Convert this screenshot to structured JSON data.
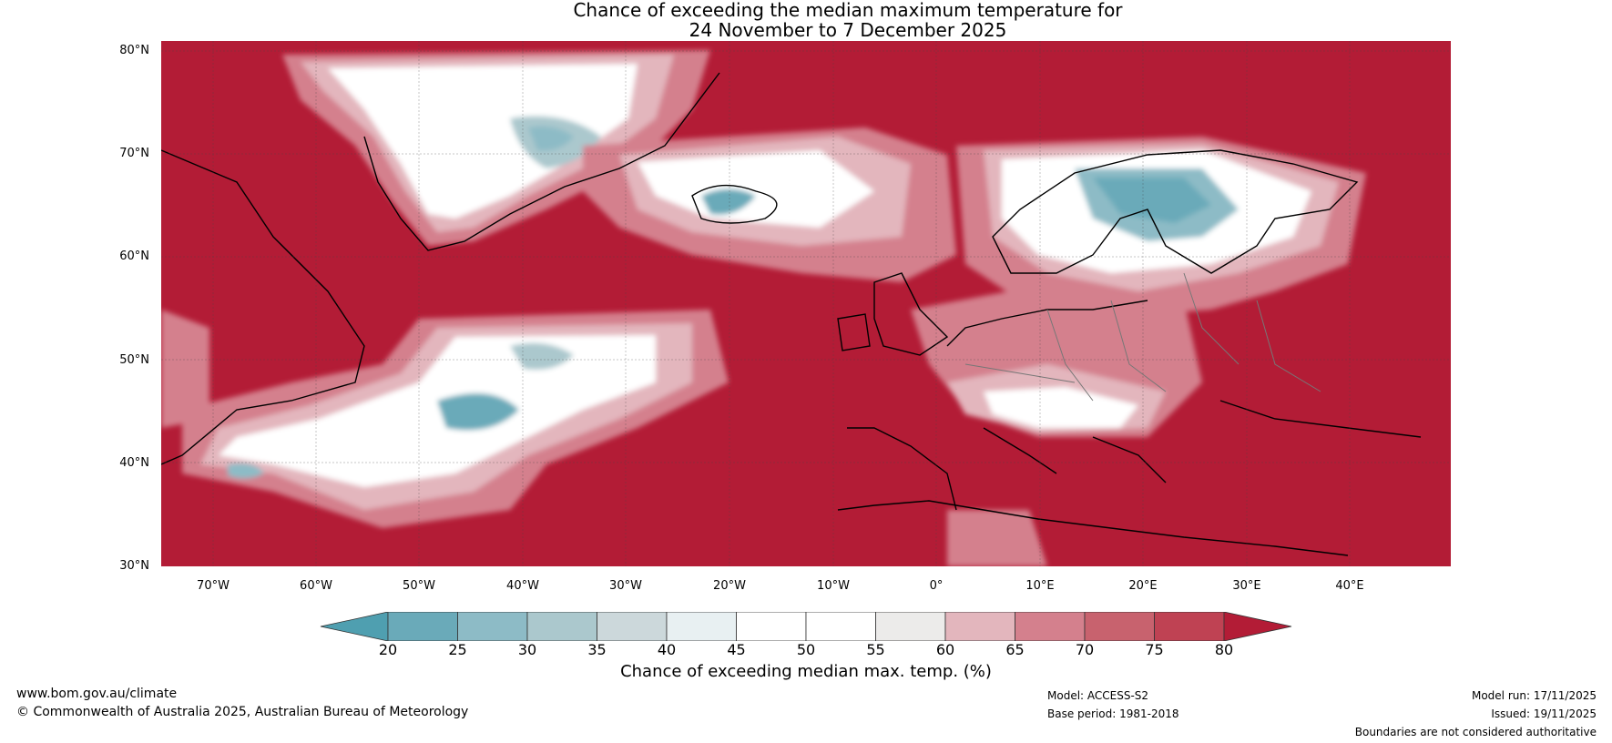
{
  "title": {
    "line1": "Chance of exceeding the median maximum temperature for",
    "line2": "24 November to 7 December 2025"
  },
  "map": {
    "lat_labels": [
      "80°N",
      "70°N",
      "60°N",
      "50°N",
      "40°N",
      "30°N"
    ],
    "lon_labels": [
      "70°W",
      "60°W",
      "50°W",
      "40°W",
      "30°W",
      "20°W",
      "10°W",
      "0°",
      "10°E",
      "20°E",
      "30°E",
      "40°E"
    ],
    "background_color": "#b31c36"
  },
  "colorbar": {
    "label": "Chance of exceeding median max. temp. (%)",
    "ticks": [
      "20",
      "25",
      "30",
      "35",
      "40",
      "45",
      "50",
      "55",
      "60",
      "65",
      "70",
      "75",
      "80"
    ],
    "colors": [
      "#4f9fb0",
      "#6aaab9",
      "#8dbbc6",
      "#abc8cd",
      "#ccd8db",
      "#e8f0f2",
      "#ffffff",
      "#ffffff",
      "#ecebea",
      "#e3b6bd",
      "#d4808d",
      "#c8626e",
      "#bf4253",
      "#b31c36"
    ]
  },
  "footer": {
    "url": "www.bom.gov.au/climate",
    "copyright": "© Commonwealth of Australia 2025, Australian Bureau of Meteorology",
    "model": "Model: ACCESS-S2",
    "base_period": "Base period: 1981-2018",
    "model_run": "Model run: 17/11/2025",
    "issued": "Issued: 19/11/2025",
    "disclaimer": "Boundaries are not considered authoritative"
  }
}
